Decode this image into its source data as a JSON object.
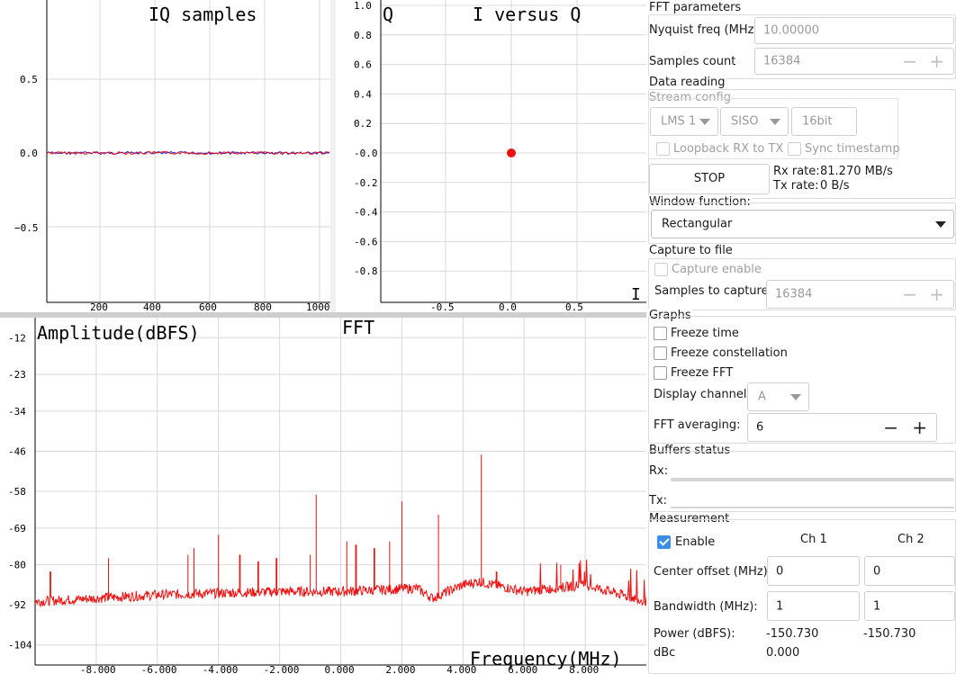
{
  "plots": {
    "iq": {
      "title": "IQ samples",
      "y_ticks": [
        "0.5",
        "0.0",
        "−0.5"
      ],
      "x_ticks": [
        "200",
        "400",
        "600",
        "800",
        "1000"
      ]
    },
    "constellation": {
      "title": "I versus Q",
      "axis_label": "Q",
      "y_ticks": [
        "1.0",
        "0.8",
        "0.6",
        "0.4",
        "0.2",
        "-0.0",
        "-0.2",
        "-0.4",
        "-0.6",
        "-0.8"
      ],
      "x_ticks": [
        "-0.5",
        "0.0",
        "0.5"
      ],
      "cursor_glyph": "I"
    },
    "fft": {
      "title": "FFT",
      "ylabel": "Amplitude(dBFS)",
      "xlabel": "Frequency(MHz)",
      "y_ticks": [
        "-12",
        "-23",
        "-34",
        "-46",
        "-58",
        "-69",
        "-80",
        "-92",
        "-104"
      ],
      "x_ticks": [
        "-8.000",
        "-6.000",
        "-4.000",
        "-2.000",
        "0.000",
        "2.000",
        "4.000",
        "6.000",
        "8.000"
      ]
    }
  },
  "chart_data": [
    {
      "type": "line",
      "title": "IQ samples",
      "x_range": [
        0,
        1024
      ],
      "ylim": [
        -1,
        1
      ],
      "series": [
        {
          "values_description_free": true,
          "constant_level": 0.0
        }
      ]
    },
    {
      "type": "scatter",
      "title": "I versus Q",
      "xlim": [
        -1,
        1
      ],
      "ylim": [
        -1,
        1
      ],
      "points": [
        [
          0.0,
          0.0
        ]
      ]
    },
    {
      "type": "line",
      "title": "FFT",
      "xlabel": "Frequency(MHz)",
      "ylabel": "Amplitude(dBFS)",
      "xlim": [
        -10,
        10
      ],
      "ylim": [
        -110,
        -6
      ],
      "noise_floor": [
        [
          -10.0,
          -91
        ],
        [
          -6.0,
          -89
        ],
        [
          -2.0,
          -88
        ],
        [
          0.0,
          -88
        ],
        [
          2.5,
          -87
        ],
        [
          3.0,
          -90
        ],
        [
          4.0,
          -86
        ],
        [
          4.5,
          -85
        ],
        [
          6.0,
          -88
        ],
        [
          8.0,
          -86
        ],
        [
          10.0,
          -91
        ]
      ],
      "spurs": [
        [
          -9.5,
          -82
        ],
        [
          -7.6,
          -78
        ],
        [
          -5.0,
          -77
        ],
        [
          -4.8,
          -75
        ],
        [
          -4.0,
          -71
        ],
        [
          -3.3,
          -77
        ],
        [
          -2.7,
          -79
        ],
        [
          -2.1,
          -78
        ],
        [
          -1.0,
          -77
        ],
        [
          -0.8,
          -59
        ],
        [
          0.2,
          -73
        ],
        [
          0.5,
          -74
        ],
        [
          1.1,
          -75
        ],
        [
          1.6,
          -73
        ],
        [
          2.0,
          -61
        ],
        [
          3.2,
          -65
        ],
        [
          4.6,
          -47
        ],
        [
          5.1,
          -82
        ],
        [
          7.2,
          -80
        ]
      ]
    }
  ],
  "panel": {
    "fft_params": {
      "title": "FFT parameters",
      "nyquist_label": "Nyquist freq (MHz):",
      "nyquist_value": "10.00000",
      "samples_label": "Samples count",
      "samples_value": "16384"
    },
    "data_reading": {
      "title": "Data reading",
      "stream_title": "Stream config",
      "device": "LMS 1",
      "mode": "SISO",
      "bits": "16bit",
      "loopback": "Loopback RX to TX",
      "sync": "Sync timestamp",
      "stop": "STOP",
      "rx_label": "Rx rate:",
      "rx_value": "81.270 MB/s",
      "tx_label": "Tx rate:",
      "tx_value": "0 B/s"
    },
    "window": {
      "title": "Window function:",
      "value": "Rectangular"
    },
    "capture": {
      "title": "Capture to file",
      "enable": "Capture enable",
      "samples_label": "Samples to capture:",
      "samples_value": "16384"
    },
    "graphs": {
      "title": "Graphs",
      "freeze_time": "Freeze time",
      "freeze_const": "Freeze constellation",
      "freeze_fft": "Freeze FFT",
      "channel_label": "Display channel:",
      "channel_value": "A",
      "avg_label": "FFT averaging:",
      "avg_value": "6"
    },
    "buffers": {
      "title": "Buffers status",
      "rx": "Rx:",
      "tx": "Tx:"
    },
    "measurement": {
      "title": "Measurement",
      "enable": "Enable",
      "ch1": "Ch 1",
      "ch2": "Ch 2",
      "center_label": "Center offset (MHz):",
      "center_ch1": "0",
      "center_ch2": "0",
      "bw_label": "Bandwidth (MHz):",
      "bw_ch1": "1",
      "bw_ch2": "1",
      "power_label": "Power (dBFS):",
      "power_ch1": "-150.730",
      "power_ch2": "-150.730",
      "dbc_label": "dBc",
      "dbc_ch1": "0.000"
    },
    "stepper_minus": "−",
    "stepper_plus": "+"
  }
}
